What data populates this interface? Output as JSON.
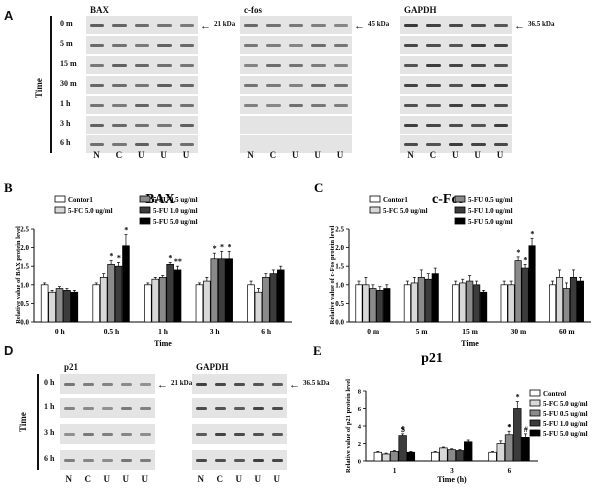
{
  "panel_a": {
    "label": "A",
    "axis_title": "Time",
    "time_points": [
      "0 m",
      "5 m",
      "15 m",
      "30 m",
      "1 h",
      "3 h",
      "6 h"
    ],
    "lanes": [
      "N",
      "C",
      "U",
      "U",
      "U"
    ],
    "blots": [
      {
        "title": "BAX",
        "marker": "21 kDa"
      },
      {
        "title": "c-fos",
        "marker": "45 kDa"
      },
      {
        "title": "GAPDH",
        "marker": "36.5 kDa"
      }
    ]
  },
  "panel_d": {
    "label": "D",
    "axis_title": "Time",
    "time_points": [
      "0 h",
      "1 h",
      "3 h",
      "6 h"
    ],
    "lanes": [
      "N",
      "C",
      "U",
      "U",
      "U"
    ],
    "blots": [
      {
        "title": "p21",
        "marker": "21 kDa"
      },
      {
        "title": "GAPDH",
        "marker": "36.5 kDa"
      }
    ]
  },
  "colors": [
    "#ffffff",
    "#d8d8d8",
    "#8a8a8a",
    "#3c3c3c",
    "#000000"
  ],
  "chart_data": [
    {
      "panel": "B",
      "type": "bar",
      "title": "BAX",
      "xlabel": "Time",
      "ylabel": "Relative value of BAX protein level",
      "categories": [
        "0 h",
        "0.5 h",
        "1 h",
        "3 h",
        "6 h"
      ],
      "ylim": [
        0,
        2.5
      ],
      "yticks": [
        "0.0",
        "0.5",
        "1.0",
        "1.5",
        "2.0",
        "2.5"
      ],
      "series": [
        {
          "name": "Contor1",
          "values": [
            1.0,
            1.0,
            1.0,
            1.0,
            1.0
          ],
          "errors": [
            0.05,
            0.05,
            0.05,
            0.05,
            0.1
          ]
        },
        {
          "name": "5-FC 5.0 ug/ml",
          "values": [
            0.8,
            1.2,
            1.15,
            1.1,
            0.8
          ],
          "errors": [
            0.05,
            0.1,
            0.05,
            0.1,
            0.1
          ]
        },
        {
          "name": "5-FU 0.5 ug/ml",
          "values": [
            0.9,
            1.55,
            1.2,
            1.7,
            1.2
          ],
          "errors": [
            0.05,
            0.1,
            0.05,
            0.15,
            0.1
          ]
        },
        {
          "name": "5-FU 1.0 ug/ml",
          "values": [
            0.85,
            1.5,
            1.55,
            1.7,
            1.3
          ],
          "errors": [
            0.05,
            0.1,
            0.05,
            0.2,
            0.1
          ]
        },
        {
          "name": "5-FU 5.0 ug/ml",
          "values": [
            0.8,
            2.05,
            1.4,
            1.7,
            1.4
          ],
          "errors": [
            0.05,
            0.3,
            0.1,
            0.2,
            0.1
          ]
        }
      ],
      "annotations": [
        "*",
        "*",
        "*",
        "*",
        "**",
        "*",
        "*",
        "*"
      ]
    },
    {
      "panel": "C",
      "type": "bar",
      "title": "c-Fos",
      "xlabel": "Time",
      "ylabel": "Relative value of c-Fos protein level",
      "categories": [
        "0 m",
        "5 m",
        "15 m",
        "30 m",
        "60 m"
      ],
      "ylim": [
        0,
        2.5
      ],
      "yticks": [
        "0.0",
        "0.5",
        "1.0",
        "1.5",
        "2.0",
        "2.5"
      ],
      "series": [
        {
          "name": "Contor1",
          "values": [
            1.0,
            1.0,
            1.0,
            1.0,
            1.0
          ],
          "errors": [
            0.1,
            0.1,
            0.1,
            0.1,
            0.1
          ]
        },
        {
          "name": "5-FC 5.0 ug/ml",
          "values": [
            1.0,
            1.05,
            1.05,
            1.0,
            1.2
          ],
          "errors": [
            0.2,
            0.15,
            0.1,
            0.1,
            0.2
          ]
        },
        {
          "name": "5-FU 0.5 ug/ml",
          "values": [
            0.9,
            1.2,
            1.1,
            1.65,
            0.9
          ],
          "errors": [
            0.1,
            0.2,
            0.15,
            0.1,
            0.15
          ]
        },
        {
          "name": "5-FU 1.0 ug/ml",
          "values": [
            0.85,
            1.15,
            1.0,
            1.45,
            1.2
          ],
          "errors": [
            0.1,
            0.15,
            0.1,
            0.1,
            0.2
          ]
        },
        {
          "name": "5-FU 5.0 ug/ml",
          "values": [
            0.9,
            1.3,
            0.8,
            2.05,
            1.1
          ],
          "errors": [
            0.1,
            0.15,
            0.05,
            0.2,
            0.1
          ]
        }
      ],
      "annotations": [
        "*",
        "*",
        "*"
      ]
    },
    {
      "panel": "E",
      "type": "bar",
      "title": "p21",
      "xlabel": "Time (h)",
      "ylabel": "Relative value of p21 protein level",
      "categories": [
        "1",
        "3",
        "6"
      ],
      "ylim": [
        0,
        8
      ],
      "yticks": [
        "0",
        "2",
        "4",
        "6",
        "8"
      ],
      "series": [
        {
          "name": "Control",
          "values": [
            1.0,
            1.0,
            1.0
          ],
          "errors": [
            0.1,
            0.1,
            0.1
          ]
        },
        {
          "name": "5-FC 5.0 ug/ml",
          "values": [
            0.8,
            1.5,
            2.0
          ],
          "errors": [
            0.1,
            0.1,
            0.3
          ]
        },
        {
          "name": "5-FU 0.5 ug/ml",
          "values": [
            1.1,
            1.3,
            3.0
          ],
          "errors": [
            0.1,
            0.1,
            0.4
          ]
        },
        {
          "name": "5-FU 1.0 ug/ml",
          "values": [
            2.9,
            1.2,
            6.0
          ],
          "errors": [
            0.2,
            0.1,
            0.8
          ]
        },
        {
          "name": "5-FU 5.0 ug/ml",
          "values": [
            1.0,
            2.2,
            2.7
          ],
          "errors": [
            0.1,
            0.2,
            0.4
          ]
        }
      ],
      "annotations": [
        "*",
        "*",
        "*",
        "#",
        "$",
        "*"
      ]
    }
  ]
}
